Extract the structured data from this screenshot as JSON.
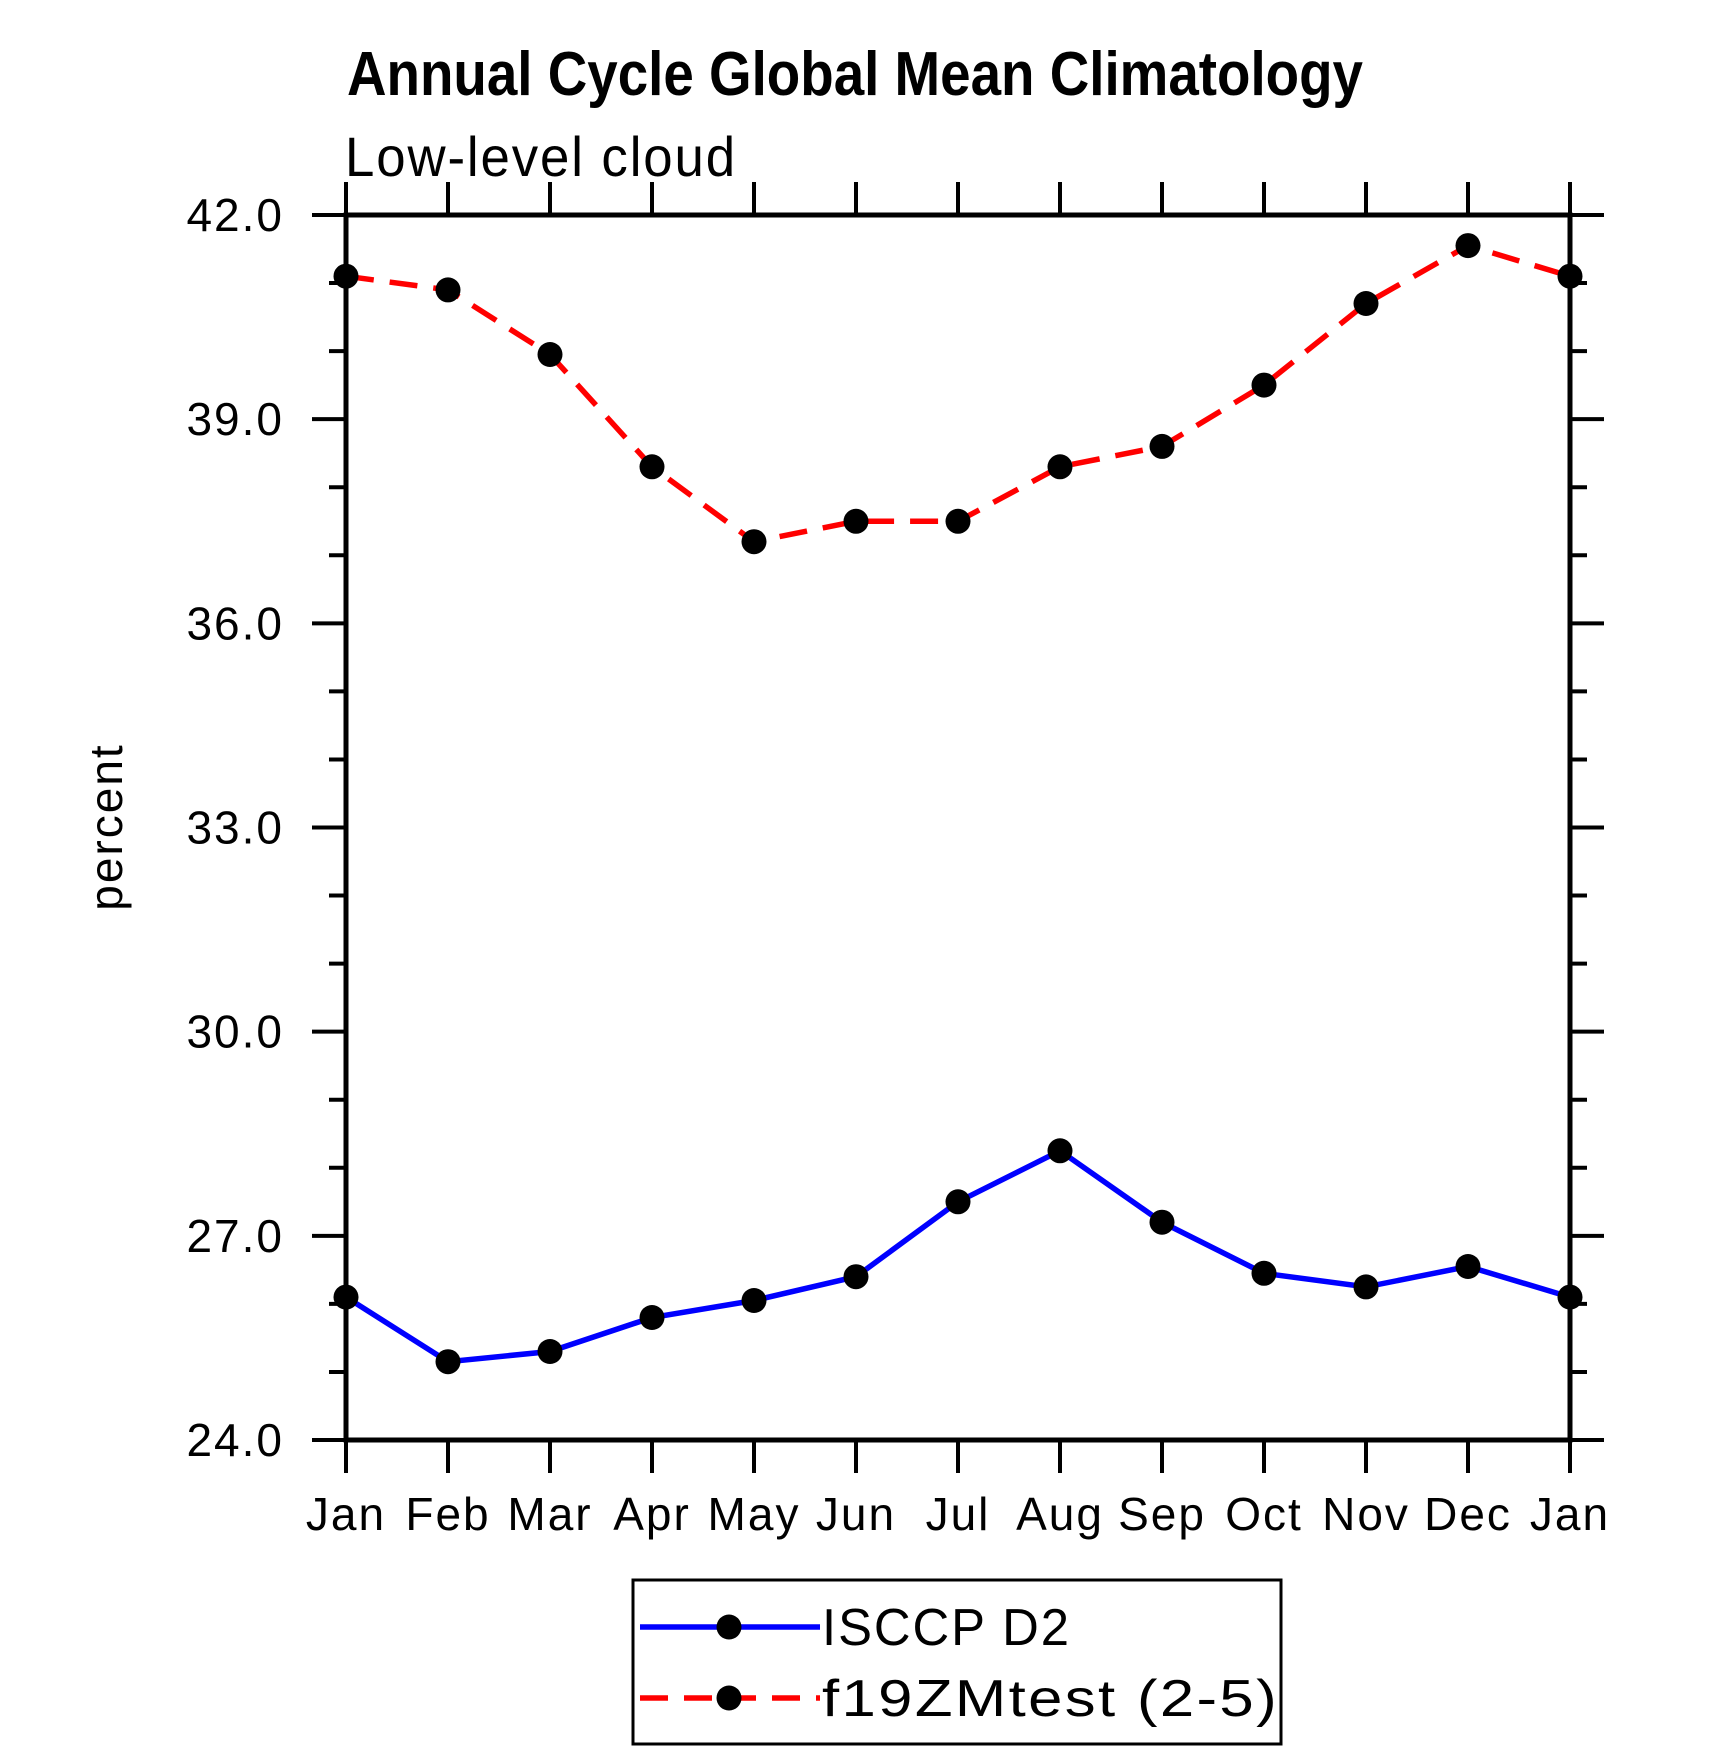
{
  "page": {
    "background": "#ffffff",
    "text_color": "#000000"
  },
  "chart_data": {
    "type": "line",
    "title": "Annual Cycle Global Mean Climatology",
    "subtitle": "Low-level cloud",
    "ylabel": "percent",
    "xlabel": "",
    "categories": [
      "Jan",
      "Feb",
      "Mar",
      "Apr",
      "May",
      "Jun",
      "Jul",
      "Aug",
      "Sep",
      "Oct",
      "Nov",
      "Dec",
      "Jan"
    ],
    "y_axis": {
      "min": 24.0,
      "max": 42.0,
      "major_ticks": [
        24.0,
        27.0,
        30.0,
        33.0,
        36.0,
        39.0,
        42.0
      ],
      "major_tick_labels": [
        "24.0",
        "27.0",
        "30.0",
        "33.0",
        "36.0",
        "39.0",
        "42.0"
      ],
      "minor_tick_step": 1.0,
      "grid": false
    },
    "series": [
      {
        "name": "ISCCP D2",
        "color": "#0000ff",
        "line_style": "solid",
        "marker": "filled-circle",
        "marker_color": "#000000",
        "values": [
          26.1,
          25.15,
          25.3,
          25.8,
          26.05,
          26.4,
          27.5,
          28.25,
          27.2,
          26.45,
          26.25,
          26.55,
          26.1
        ]
      },
      {
        "name": "f19ZMtest (2-5)",
        "color": "#ff0000",
        "line_style": "dashed",
        "marker": "filled-circle",
        "marker_color": "#000000",
        "values": [
          41.1,
          40.9,
          39.95,
          38.3,
          37.2,
          37.5,
          37.5,
          38.3,
          38.6,
          39.5,
          40.7,
          41.55,
          41.1
        ]
      }
    ],
    "legend": {
      "position": "bottom-center",
      "entries": [
        "ISCCP D2",
        "f19ZMtest (2-5)"
      ]
    }
  }
}
